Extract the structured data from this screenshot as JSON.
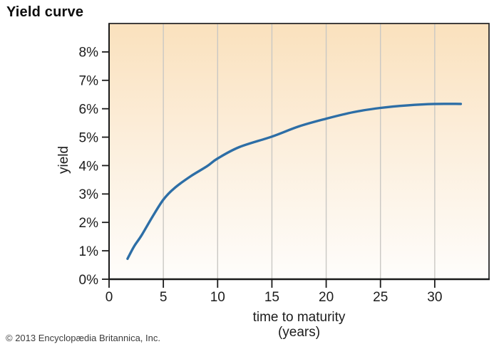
{
  "page": {
    "title": "Yield curve",
    "copyright": "© 2013 Encyclopædia Britannica, Inc."
  },
  "chart_data": {
    "type": "line",
    "title": "Yield curve",
    "xlabel": "time to maturity",
    "xlabel_unit": "(years)",
    "ylabel": "yield",
    "xlim": [
      0,
      35
    ],
    "ylim": [
      0,
      9
    ],
    "x_ticks": [
      0,
      5,
      10,
      15,
      20,
      25,
      30
    ],
    "y_ticks": [
      0,
      1,
      2,
      3,
      4,
      5,
      6,
      7,
      8
    ],
    "y_tick_suffix": "%",
    "grid": "vertical-only",
    "legend": "none",
    "colors": {
      "line": "#2d6ea6",
      "grid": "#c9c8c4",
      "axis": "#1a1a1a",
      "border": "#2b2b2b",
      "bg_top": "#fae1bd",
      "bg_mid": "#fceedb",
      "bg_bottom": "#fefdfb",
      "label": "#1c1c1c"
    },
    "series": [
      {
        "name": "yield curve",
        "color": "#2d6ea6",
        "points": [
          [
            1.7,
            0.72
          ],
          [
            2.3,
            1.15
          ],
          [
            3,
            1.55
          ],
          [
            4,
            2.2
          ],
          [
            5,
            2.8
          ],
          [
            6,
            3.2
          ],
          [
            7.5,
            3.62
          ],
          [
            9,
            3.97
          ],
          [
            10,
            4.25
          ],
          [
            12,
            4.65
          ],
          [
            15,
            5.02
          ],
          [
            17.5,
            5.38
          ],
          [
            20,
            5.65
          ],
          [
            22.5,
            5.88
          ],
          [
            25,
            6.03
          ],
          [
            27.5,
            6.12
          ],
          [
            30,
            6.17
          ],
          [
            32.4,
            6.17
          ]
        ]
      }
    ]
  }
}
